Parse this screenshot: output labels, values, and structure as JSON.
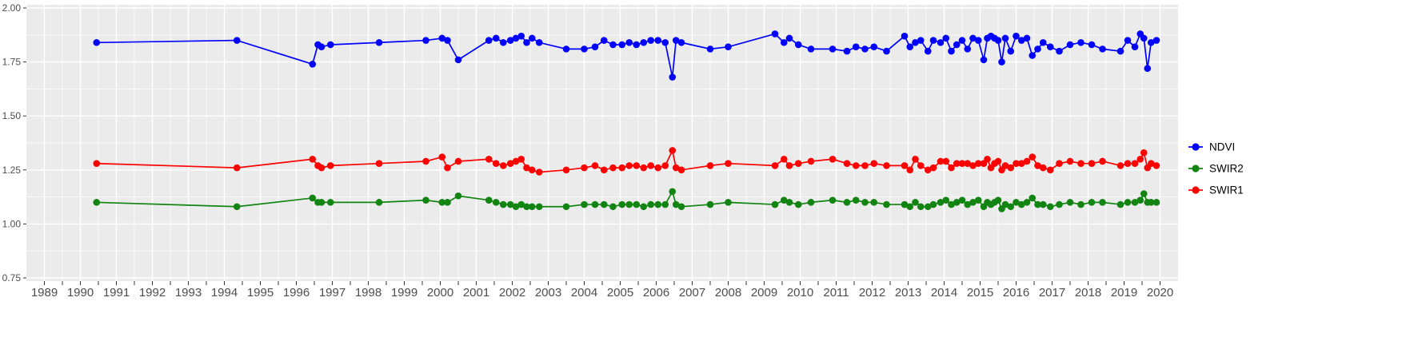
{
  "chart_data": {
    "type": "line",
    "title": "",
    "xlabel": "",
    "ylabel": "",
    "grid": true,
    "legend_position": "right",
    "panel_bg": "#EBEBEB",
    "grid_major_color": "#FFFFFF",
    "grid_minor_color": "#FFFFFF",
    "axis_text_color": "#4D4D4D",
    "tick_mark_color": "#333333",
    "xlim": [
      1988.5,
      2020.5
    ],
    "ylim": [
      0.75,
      2.0
    ],
    "x_ticks": [
      1989,
      1990,
      1991,
      1992,
      1993,
      1994,
      1995,
      1996,
      1997,
      1998,
      1999,
      2000,
      2001,
      2002,
      2003,
      2004,
      2005,
      2006,
      2007,
      2008,
      2009,
      2010,
      2011,
      2012,
      2013,
      2014,
      2015,
      2016,
      2017,
      2018,
      2019,
      2020
    ],
    "y_tick_labels": [
      "2.00",
      "1.75",
      "1.50",
      "1.25",
      "1.00",
      "0.75"
    ],
    "y_tick_values": [
      2.0,
      1.75,
      1.5,
      1.25,
      1.0,
      0.75
    ],
    "x": [
      1990.45,
      1994.35,
      1996.45,
      1996.6,
      1996.7,
      1996.95,
      1998.3,
      1999.6,
      2000.05,
      2000.2,
      2000.5,
      2001.35,
      2001.55,
      2001.75,
      2001.95,
      2002.1,
      2002.25,
      2002.4,
      2002.55,
      2002.75,
      2003.5,
      2004.0,
      2004.3,
      2004.55,
      2004.8,
      2005.05,
      2005.25,
      2005.45,
      2005.65,
      2005.85,
      2006.05,
      2006.25,
      2006.45,
      2006.55,
      2006.7,
      2007.5,
      2008.0,
      2009.3,
      2009.55,
      2009.7,
      2009.95,
      2010.3,
      2010.9,
      2011.3,
      2011.55,
      2011.8,
      2012.05,
      2012.4,
      2012.9,
      2013.05,
      2013.2,
      2013.35,
      2013.55,
      2013.7,
      2013.9,
      2014.05,
      2014.2,
      2014.35,
      2014.5,
      2014.65,
      2014.8,
      2014.95,
      2015.1,
      2015.2,
      2015.3,
      2015.4,
      2015.5,
      2015.6,
      2015.7,
      2015.85,
      2016.0,
      2016.15,
      2016.3,
      2016.45,
      2016.6,
      2016.75,
      2016.95,
      2017.2,
      2017.5,
      2017.8,
      2018.1,
      2018.4,
      2018.9,
      2019.1,
      2019.3,
      2019.45,
      2019.55,
      2019.65,
      2019.75,
      2019.9
    ],
    "series": [
      {
        "name": "NDVI",
        "color": "#0000FF",
        "values": [
          1.84,
          1.85,
          1.74,
          1.83,
          1.82,
          1.83,
          1.84,
          1.85,
          1.86,
          1.85,
          1.76,
          1.85,
          1.86,
          1.84,
          1.85,
          1.86,
          1.87,
          1.84,
          1.86,
          1.84,
          1.81,
          1.81,
          1.82,
          1.85,
          1.83,
          1.83,
          1.84,
          1.83,
          1.84,
          1.85,
          1.85,
          1.84,
          1.68,
          1.85,
          1.84,
          1.81,
          1.82,
          1.88,
          1.84,
          1.86,
          1.83,
          1.81,
          1.81,
          1.8,
          1.82,
          1.81,
          1.82,
          1.8,
          1.87,
          1.82,
          1.84,
          1.85,
          1.8,
          1.85,
          1.84,
          1.86,
          1.8,
          1.83,
          1.85,
          1.81,
          1.86,
          1.85,
          1.76,
          1.86,
          1.87,
          1.86,
          1.85,
          1.75,
          1.86,
          1.8,
          1.87,
          1.85,
          1.86,
          1.78,
          1.81,
          1.84,
          1.82,
          1.8,
          1.83,
          1.84,
          1.83,
          1.81,
          1.8,
          1.85,
          1.82,
          1.88,
          1.86,
          1.72,
          1.84,
          1.85
        ]
      },
      {
        "name": "SWIR2",
        "color": "#118411",
        "values": [
          1.1,
          1.08,
          1.12,
          1.1,
          1.1,
          1.1,
          1.1,
          1.11,
          1.1,
          1.1,
          1.13,
          1.11,
          1.1,
          1.09,
          1.09,
          1.08,
          1.09,
          1.08,
          1.08,
          1.08,
          1.08,
          1.09,
          1.09,
          1.09,
          1.08,
          1.09,
          1.09,
          1.09,
          1.08,
          1.09,
          1.09,
          1.09,
          1.15,
          1.09,
          1.08,
          1.09,
          1.1,
          1.09,
          1.11,
          1.1,
          1.09,
          1.1,
          1.11,
          1.1,
          1.11,
          1.1,
          1.1,
          1.09,
          1.09,
          1.08,
          1.1,
          1.08,
          1.08,
          1.09,
          1.1,
          1.11,
          1.09,
          1.1,
          1.11,
          1.09,
          1.1,
          1.11,
          1.08,
          1.1,
          1.09,
          1.1,
          1.11,
          1.07,
          1.09,
          1.08,
          1.1,
          1.09,
          1.1,
          1.12,
          1.09,
          1.09,
          1.08,
          1.09,
          1.1,
          1.09,
          1.1,
          1.1,
          1.09,
          1.1,
          1.1,
          1.11,
          1.14,
          1.1,
          1.1,
          1.1
        ]
      },
      {
        "name": "SWIR1",
        "color": "#FF0000",
        "values": [
          1.28,
          1.26,
          1.3,
          1.27,
          1.26,
          1.27,
          1.28,
          1.29,
          1.31,
          1.26,
          1.29,
          1.3,
          1.28,
          1.27,
          1.28,
          1.29,
          1.3,
          1.26,
          1.25,
          1.24,
          1.25,
          1.26,
          1.27,
          1.25,
          1.26,
          1.26,
          1.27,
          1.27,
          1.26,
          1.27,
          1.26,
          1.27,
          1.34,
          1.26,
          1.25,
          1.27,
          1.28,
          1.27,
          1.3,
          1.27,
          1.28,
          1.29,
          1.3,
          1.28,
          1.27,
          1.27,
          1.28,
          1.27,
          1.27,
          1.25,
          1.3,
          1.27,
          1.25,
          1.26,
          1.29,
          1.29,
          1.26,
          1.28,
          1.28,
          1.28,
          1.27,
          1.28,
          1.28,
          1.3,
          1.26,
          1.28,
          1.29,
          1.25,
          1.27,
          1.26,
          1.28,
          1.28,
          1.29,
          1.31,
          1.27,
          1.26,
          1.25,
          1.28,
          1.29,
          1.28,
          1.28,
          1.29,
          1.27,
          1.28,
          1.28,
          1.3,
          1.33,
          1.26,
          1.28,
          1.27
        ]
      }
    ],
    "legend_labels": [
      "NDVI",
      "SWIR2",
      "SWIR1"
    ]
  }
}
